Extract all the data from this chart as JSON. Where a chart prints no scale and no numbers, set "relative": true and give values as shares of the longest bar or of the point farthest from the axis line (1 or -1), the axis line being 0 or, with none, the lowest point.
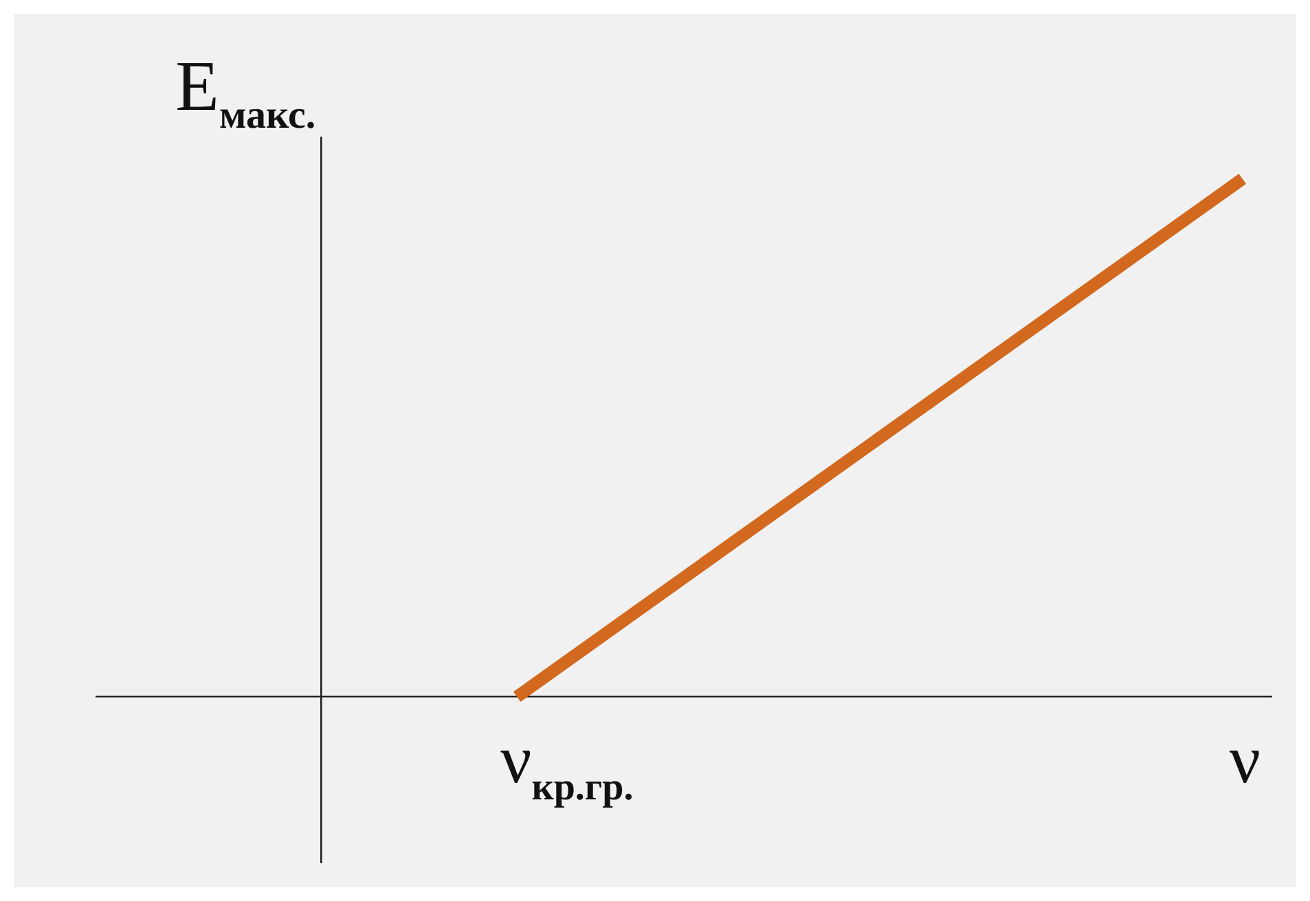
{
  "chart_data": {
    "type": "line",
    "relative": true,
    "xlabel": "ν",
    "ylabel": "E$_{макс.}$",
    "categories": [
      null,
      null
    ],
    "annotations": [
      "ν$_{кр.гр.}$"
    ],
    "series": [
      {
        "color": "#d2691e",
        "values": [
          0,
          1
        ]
      }
    ],
    "legend": false,
    "marker": "none",
    "line_style": "solid"
  }
}
